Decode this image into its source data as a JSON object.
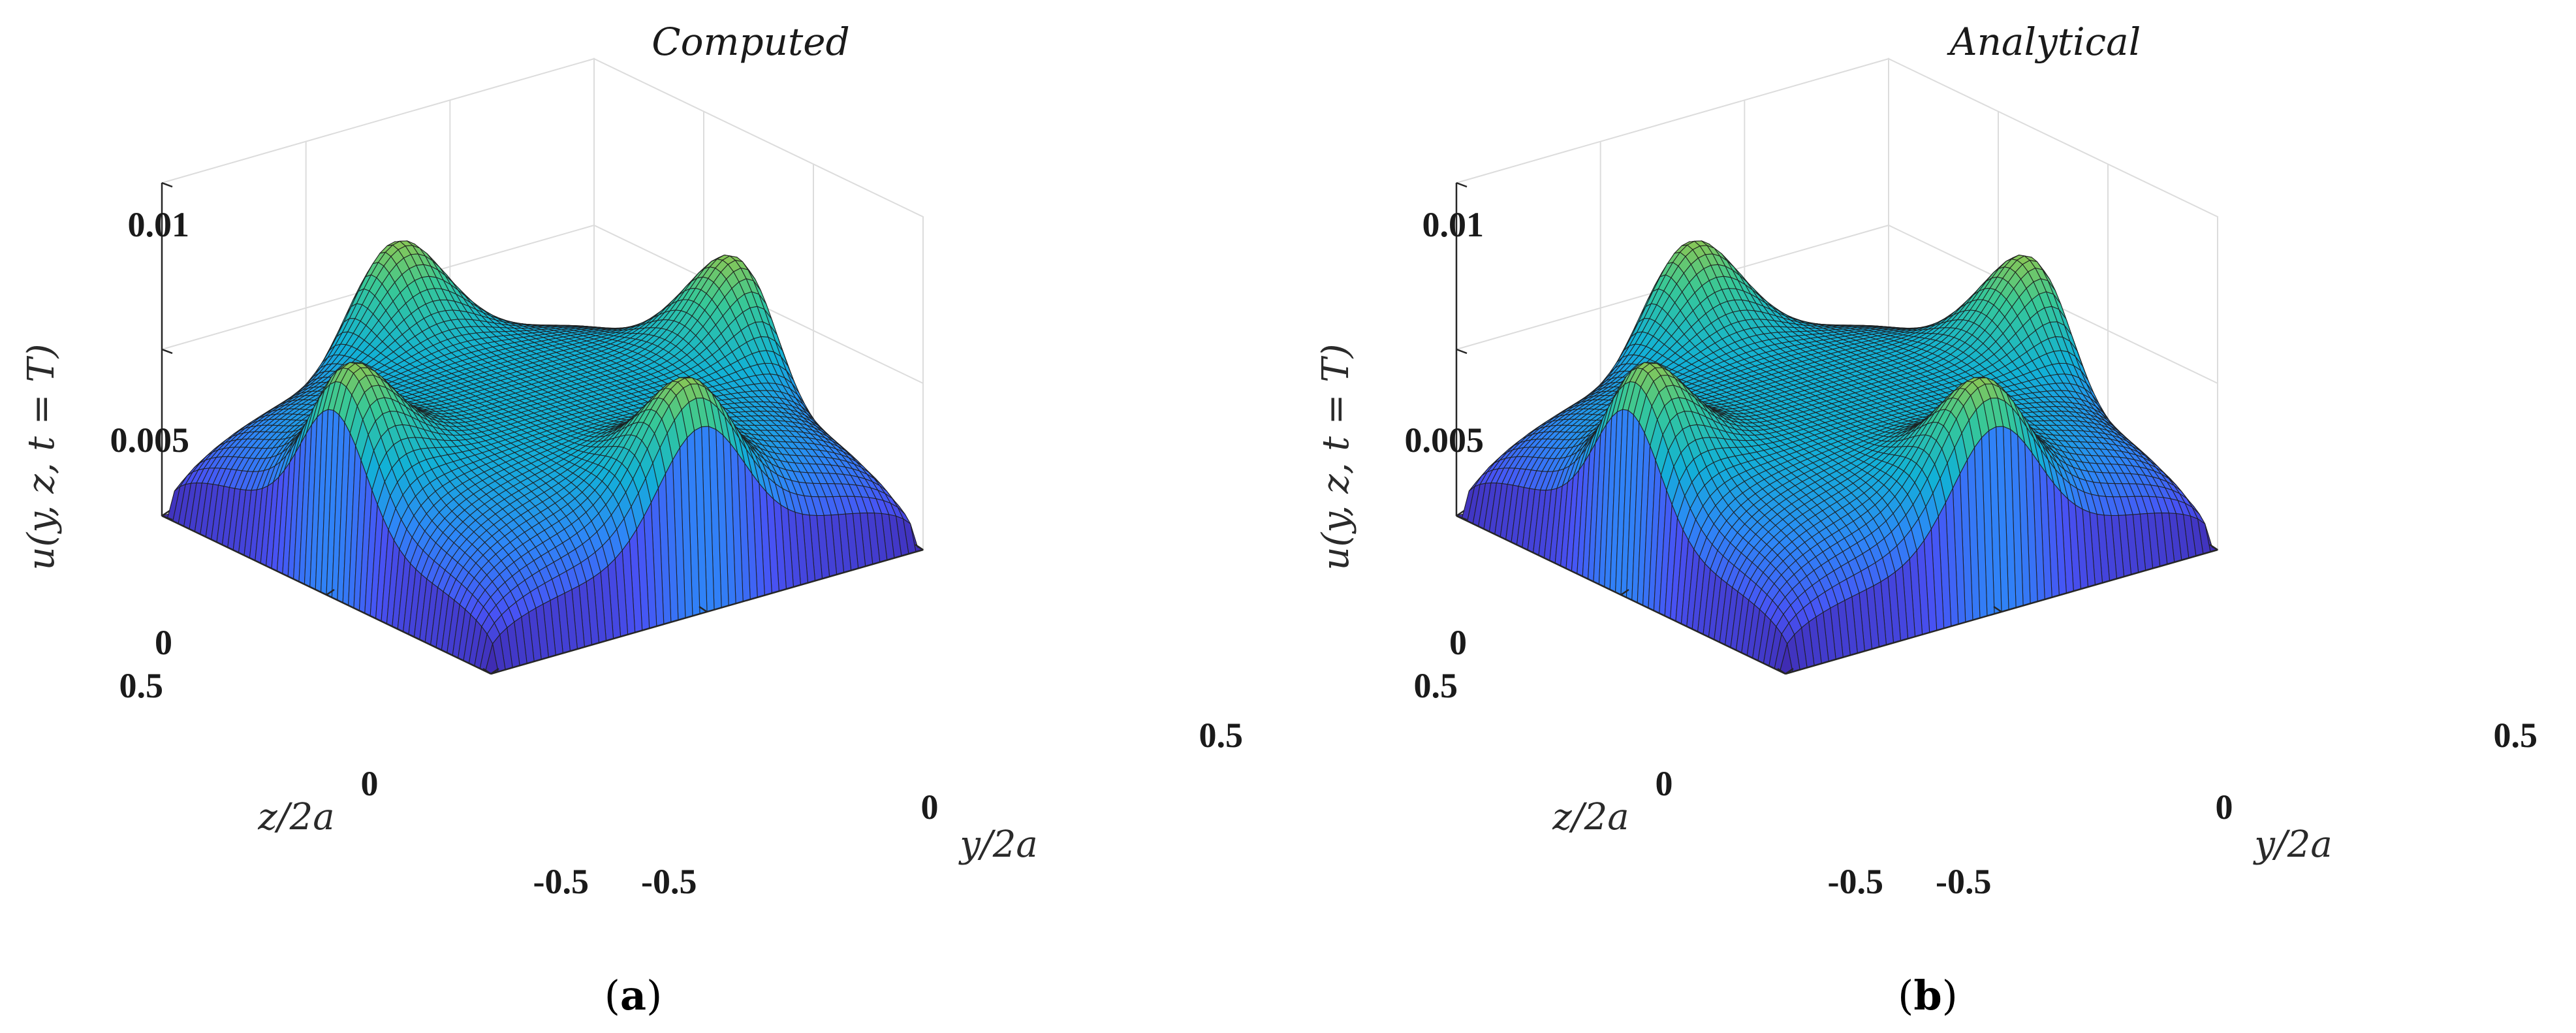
{
  "chart_data": [
    {
      "type": "surface",
      "title": "Computed",
      "caption": "a",
      "xlabel": "y/2a",
      "ylabel": "z/2a",
      "zlabel": "u(y, z, t = T)",
      "x_ticks": [
        "-0.5",
        "0",
        "0.5"
      ],
      "y_ticks": [
        "-0.5",
        "0",
        "0.5"
      ],
      "z_ticks": [
        "0",
        "0.005",
        "0.01"
      ],
      "xlim": [
        -0.5,
        0.5
      ],
      "ylim": [
        -0.5,
        0.5
      ],
      "zlim": [
        0,
        0.01
      ],
      "colormap": "parula",
      "surface_description_values": {
        "edge_midpoint_peak": 0.0095,
        "center_value": 0.0045,
        "corner_value": 0.0,
        "boundary_value": 0.0
      }
    },
    {
      "type": "surface",
      "title": "Analytical",
      "caption": "b",
      "xlabel": "y/2a",
      "ylabel": "z/2a",
      "zlabel": "u(y, z, t = T)",
      "x_ticks": [
        "-0.5",
        "0",
        "0.5"
      ],
      "y_ticks": [
        "-0.5",
        "0",
        "0.5"
      ],
      "z_ticks": [
        "0",
        "0.005",
        "0.01"
      ],
      "xlim": [
        -0.5,
        0.5
      ],
      "ylim": [
        -0.5,
        0.5
      ],
      "zlim": [
        0,
        0.01
      ],
      "colormap": "parula",
      "surface_description_values": {
        "edge_midpoint_peak": 0.0095,
        "center_value": 0.0045,
        "corner_value": 0.0,
        "boundary_value": 0.0
      }
    }
  ]
}
